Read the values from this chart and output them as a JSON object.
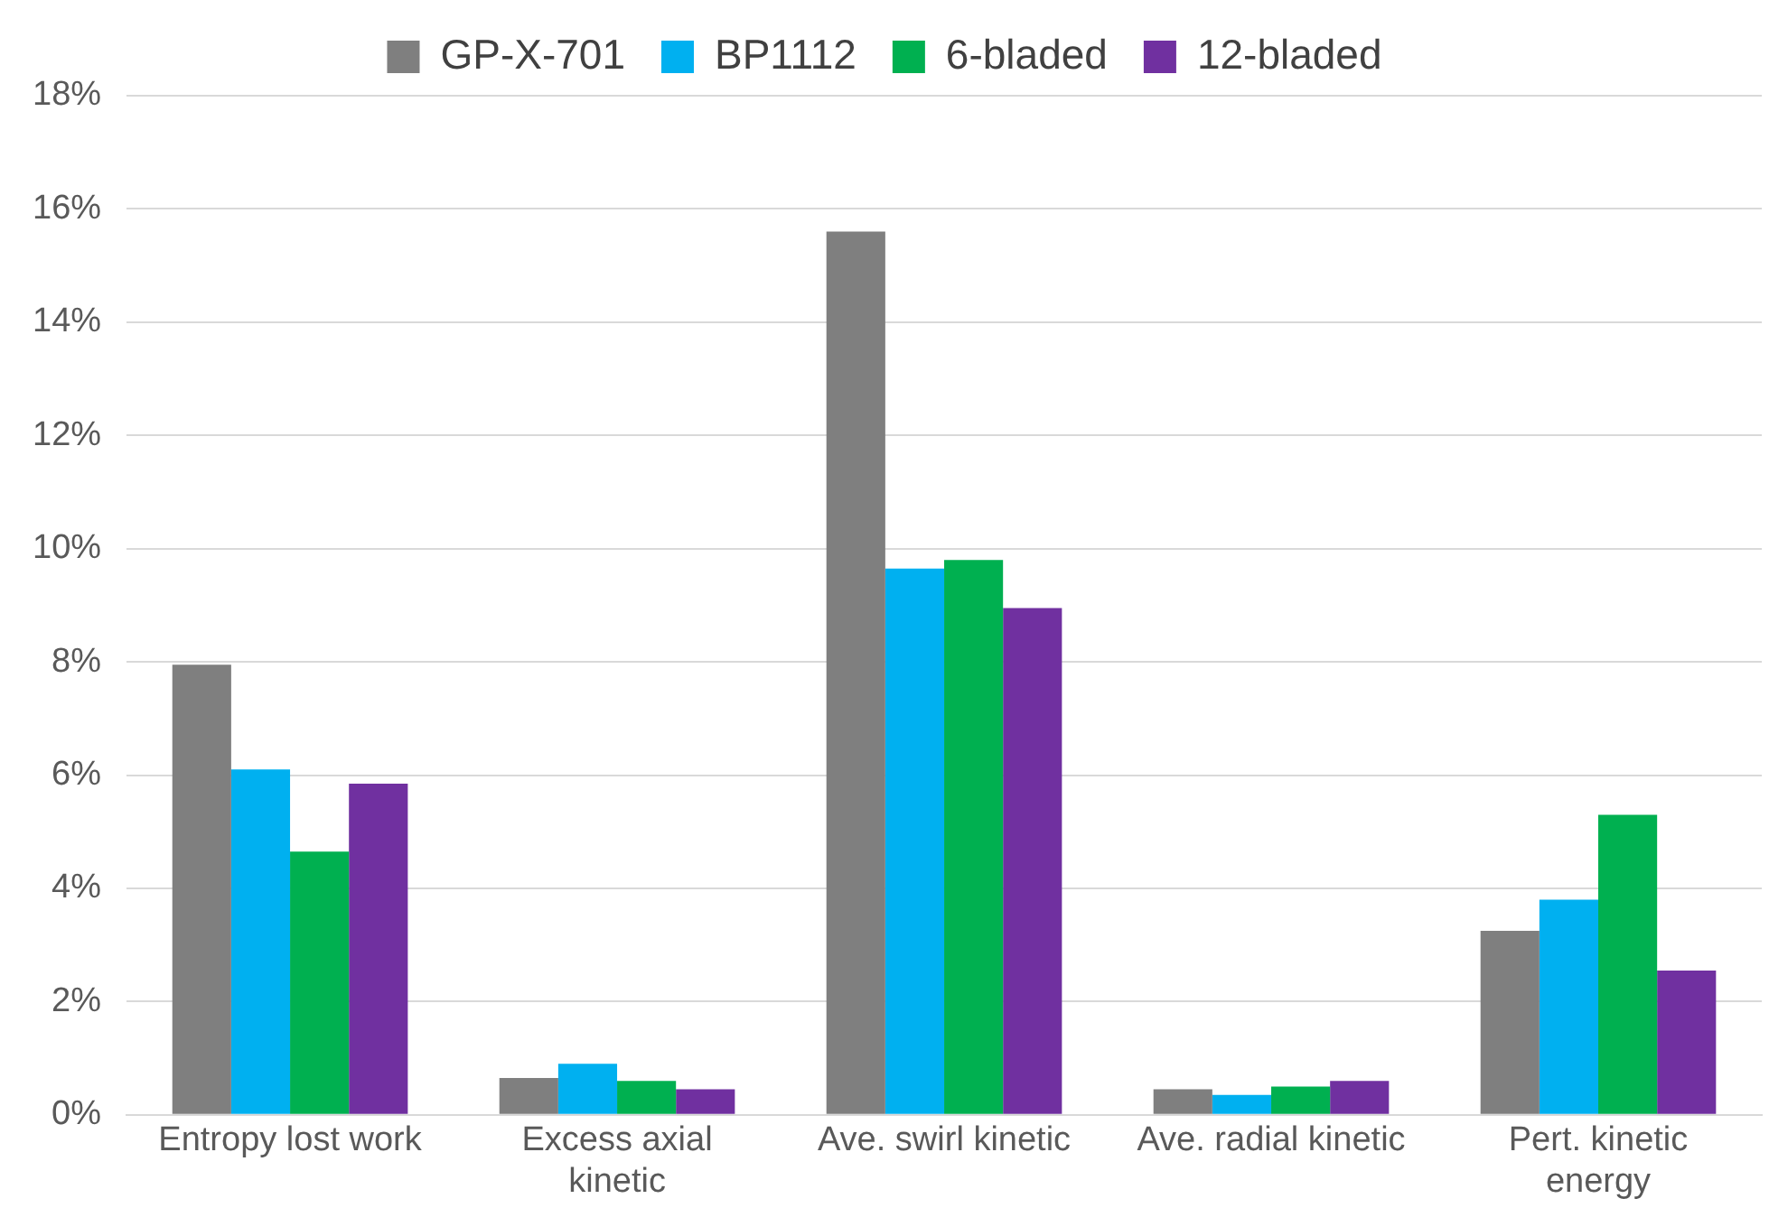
{
  "chart_data": {
    "type": "bar",
    "categories": [
      "Entropy lost work",
      "Excess axial kinetic",
      "Ave. swirl kinetic",
      "Ave. radial kinetic",
      "Pert. kinetic energy"
    ],
    "series": [
      {
        "name": "GP-X-701",
        "color": "#7f7f7f",
        "values": [
          7.95,
          0.65,
          15.6,
          0.45,
          3.25
        ]
      },
      {
        "name": "BP1112",
        "color": "#00b0f0",
        "values": [
          6.1,
          0.9,
          9.65,
          0.35,
          3.8
        ]
      },
      {
        "name": "6-bladed",
        "color": "#00b050",
        "values": [
          4.65,
          0.6,
          9.8,
          0.5,
          5.3
        ]
      },
      {
        "name": "12-bladed",
        "color": "#7030a0",
        "values": [
          5.85,
          0.45,
          8.95,
          0.6,
          2.55
        ]
      }
    ],
    "ylim": [
      0,
      18
    ],
    "yticks": [
      {
        "value": 0,
        "label": "0%"
      },
      {
        "value": 2,
        "label": "2%"
      },
      {
        "value": 4,
        "label": "4%"
      },
      {
        "value": 6,
        "label": "6%"
      },
      {
        "value": 8,
        "label": "8%"
      },
      {
        "value": 10,
        "label": "10%"
      },
      {
        "value": 12,
        "label": "12%"
      },
      {
        "value": 14,
        "label": "14%"
      },
      {
        "value": 16,
        "label": "16%"
      },
      {
        "value": 18,
        "label": "18%"
      }
    ],
    "grid": "y",
    "legend": "top"
  }
}
